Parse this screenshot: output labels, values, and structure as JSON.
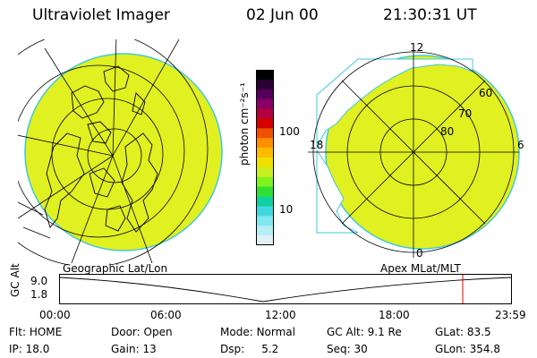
{
  "header": {
    "instrument": "Ultraviolet Imager",
    "date": "02 Jun 00",
    "time": "21:30:31 UT"
  },
  "geo_map": {
    "label": "Geographic Lat/Lon",
    "fill_color": "#e0f020"
  },
  "apex_map": {
    "label": "Apex MLat/MLT",
    "mlt_labels": [
      "12",
      "18",
      "6",
      "0"
    ],
    "lat_labels": [
      "60",
      "70",
      "80"
    ],
    "fill_color": "#e0f020"
  },
  "colorbar": {
    "unit_label": "photon cm⁻²s⁻¹",
    "ticks": [
      "100",
      "10"
    ],
    "colors": [
      "#000000",
      "#2a0033",
      "#55005a",
      "#8a0066",
      "#b50040",
      "#d40000",
      "#f05000",
      "#ff9000",
      "#ffbb00",
      "#f0e000",
      "#c8f020",
      "#80f020",
      "#30e030",
      "#10d0a0",
      "#40d8e0",
      "#80e8f0",
      "#b8eef5",
      "#e0f0f5"
    ]
  },
  "altitude_plot": {
    "ylabel": "GC Alt",
    "y_ticks": [
      "9.0",
      "1.8"
    ],
    "x_ticks": [
      "00:00",
      "06:00",
      "12:00",
      "18:00",
      "23:59"
    ],
    "marker_color": "#e00000"
  },
  "status": {
    "row1": [
      {
        "label": "Flt:",
        "value": "HOME"
      },
      {
        "label": "Door:",
        "value": "Open"
      },
      {
        "label": "Mode:",
        "value": "Normal"
      },
      {
        "label": "GC Alt:",
        "value": "9.1 Re"
      },
      {
        "label": "GLat:",
        "value": "83.5"
      }
    ],
    "row2": [
      {
        "label": "IP:",
        "value": "18.0"
      },
      {
        "label": "Gain:",
        "value": "13"
      },
      {
        "label": "Dsp:",
        "value": "5.2"
      },
      {
        "label": "Seq:",
        "value": "30"
      },
      {
        "label": "GLon:",
        "value": "354.8"
      }
    ]
  }
}
